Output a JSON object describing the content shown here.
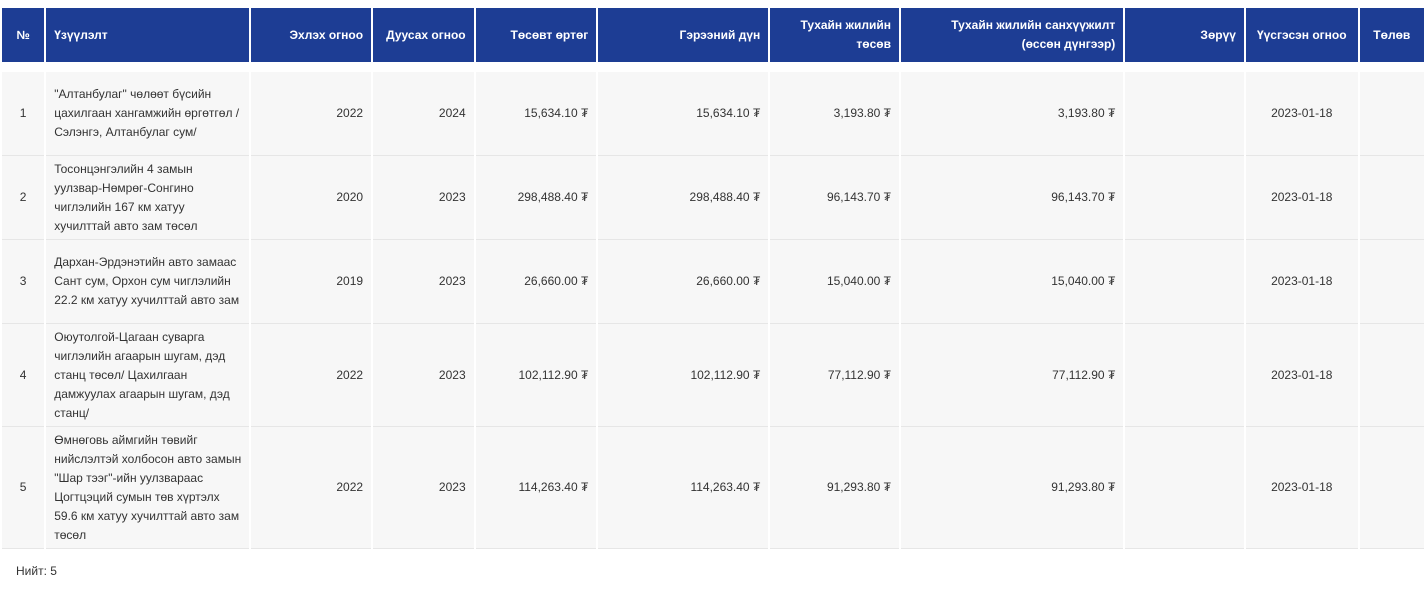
{
  "table": {
    "headers": {
      "no": "№",
      "name": "Үзүүлэлт",
      "start": "Эхлэх огноо",
      "end": "Дуусах огноо",
      "budget_cost": "Төсөвт өртөг",
      "contract_amount": "Гэрээний дүн",
      "year_budget": "Тухайн жилийн төсөв",
      "year_funding": "Тухайн жилийн санхүүжилт (өссөн дүнгээр)",
      "performer": "Зөрүү",
      "created_date": "Үүсгэсэн огноо",
      "status": "Төлөв"
    },
    "rows": [
      {
        "no": "1",
        "name": "\"Алтанбулаг\" чөлөөт бүсийн цахилгаан хангамжийн өргөтгөл /Сэлэнгэ, Алтанбулаг сум/",
        "start": "2022",
        "end": "2024",
        "budget_cost": "15,634.10 ₮",
        "contract_amount": "15,634.10 ₮",
        "year_budget": "3,193.80 ₮",
        "year_funding": "3,193.80 ₮",
        "performer": "",
        "created_date": "2023-01-18",
        "status": ""
      },
      {
        "no": "2",
        "name": "Тосонцэнгэлийн 4 замын уулзвар-Нөмрөг-Сонгино чиглэлийн 167 км хатуу хучилттай авто зам төсөл",
        "start": "2020",
        "end": "2023",
        "budget_cost": "298,488.40 ₮",
        "contract_amount": "298,488.40 ₮",
        "year_budget": "96,143.70 ₮",
        "year_funding": "96,143.70 ₮",
        "performer": "",
        "created_date": "2023-01-18",
        "status": ""
      },
      {
        "no": "3",
        "name": "Дархан-Эрдэнэтийн авто замаас Сант сум, Орхон сум чиглэлийн 22.2 км хатуу хучилттай авто зам",
        "start": "2019",
        "end": "2023",
        "budget_cost": "26,660.00 ₮",
        "contract_amount": "26,660.00 ₮",
        "year_budget": "15,040.00 ₮",
        "year_funding": "15,040.00 ₮",
        "performer": "",
        "created_date": "2023-01-18",
        "status": ""
      },
      {
        "no": "4",
        "name": "Оюутолгой-Цагаан суварга чиглэлийн агаарын шугам, дэд станц төсөл/ Цахилгаан дамжуулах агаарын шугам, дэд станц/",
        "start": "2022",
        "end": "2023",
        "budget_cost": "102,112.90 ₮",
        "contract_amount": "102,112.90 ₮",
        "year_budget": "77,112.90 ₮",
        "year_funding": "77,112.90 ₮",
        "performer": "",
        "created_date": "2023-01-18",
        "status": ""
      },
      {
        "no": "5",
        "name": "Өмнөговь аймгийн төвийг нийслэлтэй холбосон авто замын \"Шар тээг\"-ийн уулзвараас Цогтцэций сумын төв хүртэлх 59.6 км хатуу хучилттай авто зам төсөл",
        "start": "2022",
        "end": "2023",
        "budget_cost": "114,263.40 ₮",
        "contract_amount": "114,263.40 ₮",
        "year_budget": "91,293.80 ₮",
        "year_funding": "91,293.80 ₮",
        "performer": "",
        "created_date": "2023-01-18",
        "status": ""
      }
    ]
  },
  "footer": {
    "total": "Нийт: 5"
  }
}
